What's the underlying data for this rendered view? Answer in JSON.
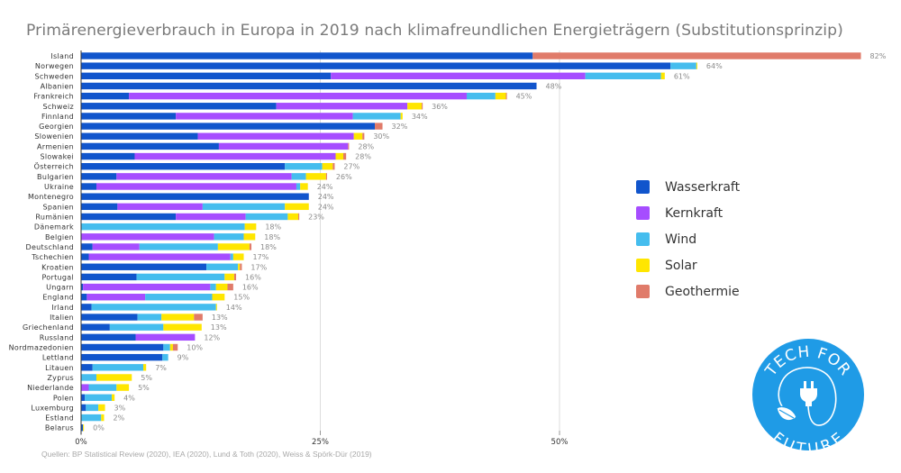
{
  "title": "Primärenergieverbrauch in Europa in 2019 nach klimafreundlichen Energieträgern (Substitutionsprinzip)",
  "source": "Quellen: BP Statistical Review (2020), IEA (2020), Lund & Toth (2020), Weiss & Spörk-Dür (2019)",
  "logo": {
    "top_text": "TECH FOR",
    "bottom_text": "FUTURE",
    "color": "#1f9be6"
  },
  "chart_data": {
    "type": "bar",
    "orientation": "horizontal",
    "stacked": true,
    "title": "Primärenergieverbrauch in Europa in 2019 nach klimafreundlichen Energieträgern (Substitutionsprinzip)",
    "xlabel": "",
    "ylabel": "",
    "xlim": [
      0,
      82
    ],
    "x_ticks": [
      0,
      25,
      50
    ],
    "x_tick_labels": [
      "0%",
      "25%",
      "50%"
    ],
    "grid": "vertical",
    "legend_position": "right",
    "categories": [
      "Island",
      "Norwegen",
      "Schweden",
      "Albanien",
      "Frankreich",
      "Schweiz",
      "Finnland",
      "Georgien",
      "Slowenien",
      "Armenien",
      "Slowakei",
      "Österreich",
      "Bulgarien",
      "Ukraine",
      "Montenegro",
      "Spanien",
      "Rumänien",
      "Dänemark",
      "Belgien",
      "Deutschland",
      "Tschechien",
      "Kroatien",
      "Portugal",
      "Ungarn",
      "England",
      "Irland",
      "Italien",
      "Griechenland",
      "Russland",
      "Nordmazedonien",
      "Lettland",
      "Litauen",
      "Zyprus",
      "Niederlande",
      "Polen",
      "Luxemburg",
      "Estland",
      "Belarus"
    ],
    "totals_labels": [
      "82%",
      "64%",
      "61%",
      "48%",
      "45%",
      "36%",
      "34%",
      "32%",
      "30%",
      "28%",
      "28%",
      "27%",
      "26%",
      "24%",
      "24%",
      "24%",
      "23%",
      "18%",
      "18%",
      "18%",
      "17%",
      "17%",
      "16%",
      "16%",
      "15%",
      "14%",
      "13%",
      "13%",
      "12%",
      "10%",
      "9%",
      "7%",
      "5%",
      "5%",
      "4%",
      "3%",
      "2%",
      "0%"
    ],
    "series": [
      {
        "name": "Wasserkraft",
        "color": "#1155cc",
        "values": [
          47.2,
          61.6,
          26.1,
          47.6,
          5.0,
          20.4,
          9.9,
          30.7,
          12.2,
          14.4,
          5.6,
          21.3,
          3.7,
          1.6,
          23.8,
          3.8,
          9.9,
          0,
          0,
          1.2,
          0.8,
          13.1,
          5.8,
          0.2,
          0.6,
          1.1,
          5.9,
          3.0,
          5.7,
          8.6,
          8.5,
          1.2,
          0,
          0,
          0.4,
          0.5,
          0,
          0.2
        ]
      },
      {
        "name": "Kernkraft",
        "color": "#a64dff",
        "values": [
          0,
          0,
          26.6,
          0,
          35.3,
          13.7,
          18.5,
          0,
          16.3,
          13.5,
          21.0,
          0,
          18.3,
          20.9,
          0,
          8.9,
          7.3,
          0,
          13.9,
          4.9,
          14.8,
          0,
          0,
          13.3,
          6.1,
          0,
          0,
          0,
          6.2,
          0,
          0,
          0,
          0,
          0.8,
          0,
          0,
          0,
          0
        ]
      },
      {
        "name": "Wind",
        "color": "#45bdee",
        "values": [
          0,
          2.7,
          7.9,
          0,
          3.0,
          0,
          5.0,
          0,
          0,
          0,
          0,
          3.9,
          1.5,
          0.4,
          0,
          8.6,
          4.4,
          17.1,
          3.1,
          8.2,
          0.3,
          3.3,
          9.2,
          0.6,
          7.0,
          13.0,
          2.5,
          5.6,
          0,
          0.7,
          0.6,
          5.3,
          1.6,
          2.9,
          2.8,
          1.3,
          2.1,
          0
        ]
      },
      {
        "name": "Solar",
        "color": "#ffe600",
        "values": [
          0,
          0.1,
          0.4,
          0,
          1.1,
          1.5,
          0.2,
          0,
          0.9,
          0,
          0.8,
          1.1,
          2.1,
          0.8,
          0,
          2.5,
          1.1,
          1.2,
          1.2,
          3.3,
          1.1,
          0.2,
          1.0,
          1.2,
          1.3,
          0.1,
          3.4,
          4.0,
          0,
          0.3,
          0,
          0.3,
          3.7,
          1.3,
          0.3,
          0.7,
          0.3,
          0.1
        ]
      },
      {
        "name": "Geothermie",
        "color": "#e07b6a",
        "values": [
          34.3,
          0,
          0,
          0,
          0.1,
          0.1,
          0,
          0.8,
          0.2,
          0.1,
          0.3,
          0.2,
          0.1,
          0,
          0,
          0,
          0.1,
          0,
          0,
          0.2,
          0,
          0.2,
          0.2,
          0.6,
          0,
          0,
          0.9,
          0,
          0,
          0.5,
          0,
          0,
          0,
          0,
          0,
          0,
          0,
          0
        ]
      }
    ]
  }
}
